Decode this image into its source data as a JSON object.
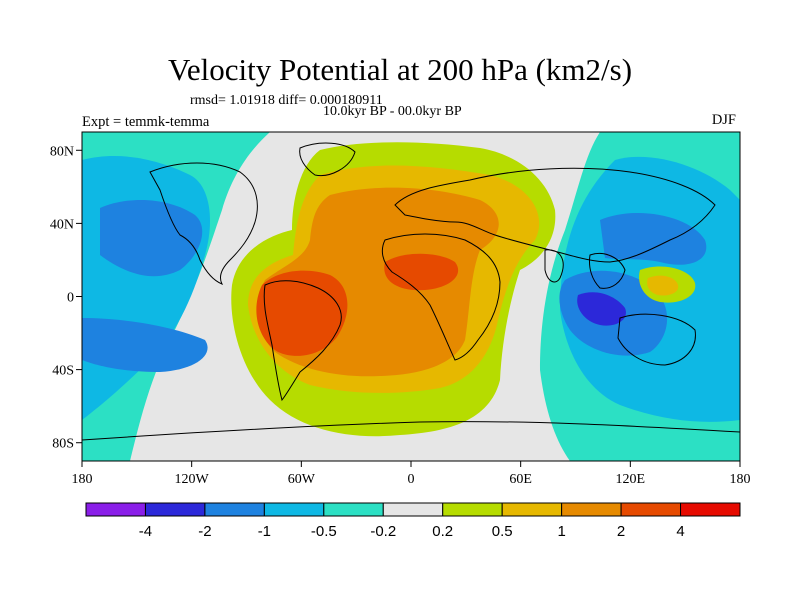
{
  "header": {
    "title": "Velocity Potential at 200 hPa (km2/s)",
    "stats": "rmsd= 1.01918 diff= 0.000180911",
    "period": "10.0kyr BP - 00.0kyr BP",
    "experiment": "Expt = temmk-temma",
    "season": "DJF"
  },
  "axes": {
    "lon_ticks": [
      {
        "lon": -180,
        "label": "180"
      },
      {
        "lon": -120,
        "label": "120W"
      },
      {
        "lon": -60,
        "label": "60W"
      },
      {
        "lon": 0,
        "label": "0"
      },
      {
        "lon": 60,
        "label": "60E"
      },
      {
        "lon": 120,
        "label": "120E"
      },
      {
        "lon": 180,
        "label": "180"
      }
    ],
    "lat_ticks": [
      {
        "lat": 80,
        "label": "80N"
      },
      {
        "lat": 40,
        "label": "40N"
      },
      {
        "lat": 0,
        "label": "0"
      },
      {
        "lat": -40,
        "label": "40S"
      },
      {
        "lat": -80,
        "label": "80S"
      }
    ]
  },
  "colorbar": {
    "colors": [
      "#8a1ee8",
      "#2c28d9",
      "#1e82e0",
      "#0eb8e4",
      "#2ce0c4",
      "#e6e6e6",
      "#b6dc00",
      "#e6b800",
      "#e68a00",
      "#e64a00",
      "#e60a00"
    ],
    "labels": [
      "-4",
      "-2",
      "-1",
      "-0.5",
      "-0.2",
      "0.2",
      "0.5",
      "1",
      "2",
      "4"
    ]
  },
  "chart_data": {
    "type": "heatmap",
    "title": "Velocity Potential at 200 hPa (km2/s)",
    "subtitle": "10.0kyr BP - 00.0kyr BP",
    "levels": [
      -4,
      -2,
      -1,
      -0.5,
      -0.2,
      0.2,
      0.5,
      1,
      2,
      4
    ],
    "xlim": [
      -180,
      180
    ],
    "ylim": [
      -90,
      90
    ],
    "fields": [
      {
        "level": 0.2,
        "min_lat": -55,
        "max_lat": 82,
        "min_lon": -100,
        "max_lon": 85
      },
      {
        "level": 0.5,
        "min_lat": -45,
        "max_lat": 72,
        "min_lon": -97,
        "max_lon": 60
      },
      {
        "level": 1,
        "min_lat": -38,
        "max_lat": 55,
        "min_lon": -95,
        "max_lon": 45
      },
      {
        "level": 2,
        "min_lat": -25,
        "max_lat": 28,
        "min_lon": -92,
        "max_lon": 20
      },
      {
        "level": -0.2,
        "min_lat": -80,
        "max_lat": 85,
        "min_lon": 70,
        "max_lon": 180
      },
      {
        "level": -0.5,
        "min_lat": -60,
        "max_lat": 55,
        "min_lon": 90,
        "max_lon": 165
      },
      {
        "level": -1,
        "min_lat": -45,
        "max_lat": 15,
        "min_lon": 95,
        "max_lon": 135
      },
      {
        "level": -2,
        "min_lat": -20,
        "max_lat": 0,
        "min_lon": 100,
        "max_lon": 120
      },
      {
        "level": 0.2,
        "min_lat": 5,
        "max_lat": 20,
        "min_lon": 130,
        "max_lon": 150
      }
    ]
  }
}
